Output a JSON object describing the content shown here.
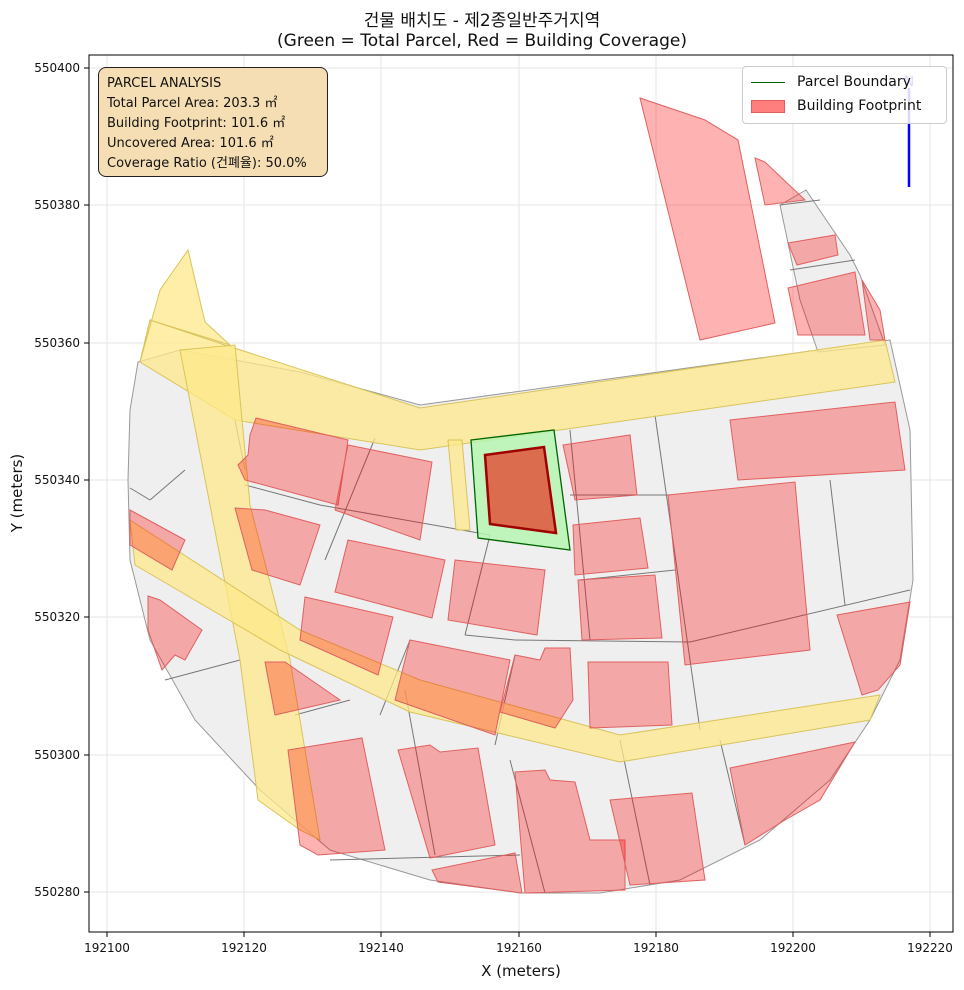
{
  "title_line1": "건물 배치도 - 제2종일반주거지역",
  "title_line2": "(Green = Total Parcel, Red = Building Coverage)",
  "xlabel": "X (meters)",
  "ylabel": "Y (meters)",
  "x_ticks": [
    "192100",
    "192120",
    "192140",
    "192160",
    "192180",
    "192200",
    "192220"
  ],
  "y_ticks": [
    "550280",
    "550300",
    "550320",
    "550340",
    "550360",
    "550380",
    "550400"
  ],
  "info": {
    "heading": "PARCEL ANALYSIS",
    "total_area": "Total Parcel Area: 203.3 ㎡",
    "footprint": "Building Footprint: 101.6 ㎡",
    "uncovered": "Uncovered Area: 101.6 ㎡",
    "coverage": "Coverage Ratio (건폐율): 50.0%"
  },
  "legend": {
    "parcel": "Parcel Boundary",
    "building": "Building Footprint"
  },
  "north_arrow_label": "N",
  "colors": {
    "parcel_edge": "#006400",
    "parcel_fill": "#b6f5b0",
    "building_fill": "#ff0000",
    "road": "#fde88a",
    "surround_fill": "#efefef",
    "infobox": "#f5deb3",
    "north_arrow": "#0000ff"
  }
}
